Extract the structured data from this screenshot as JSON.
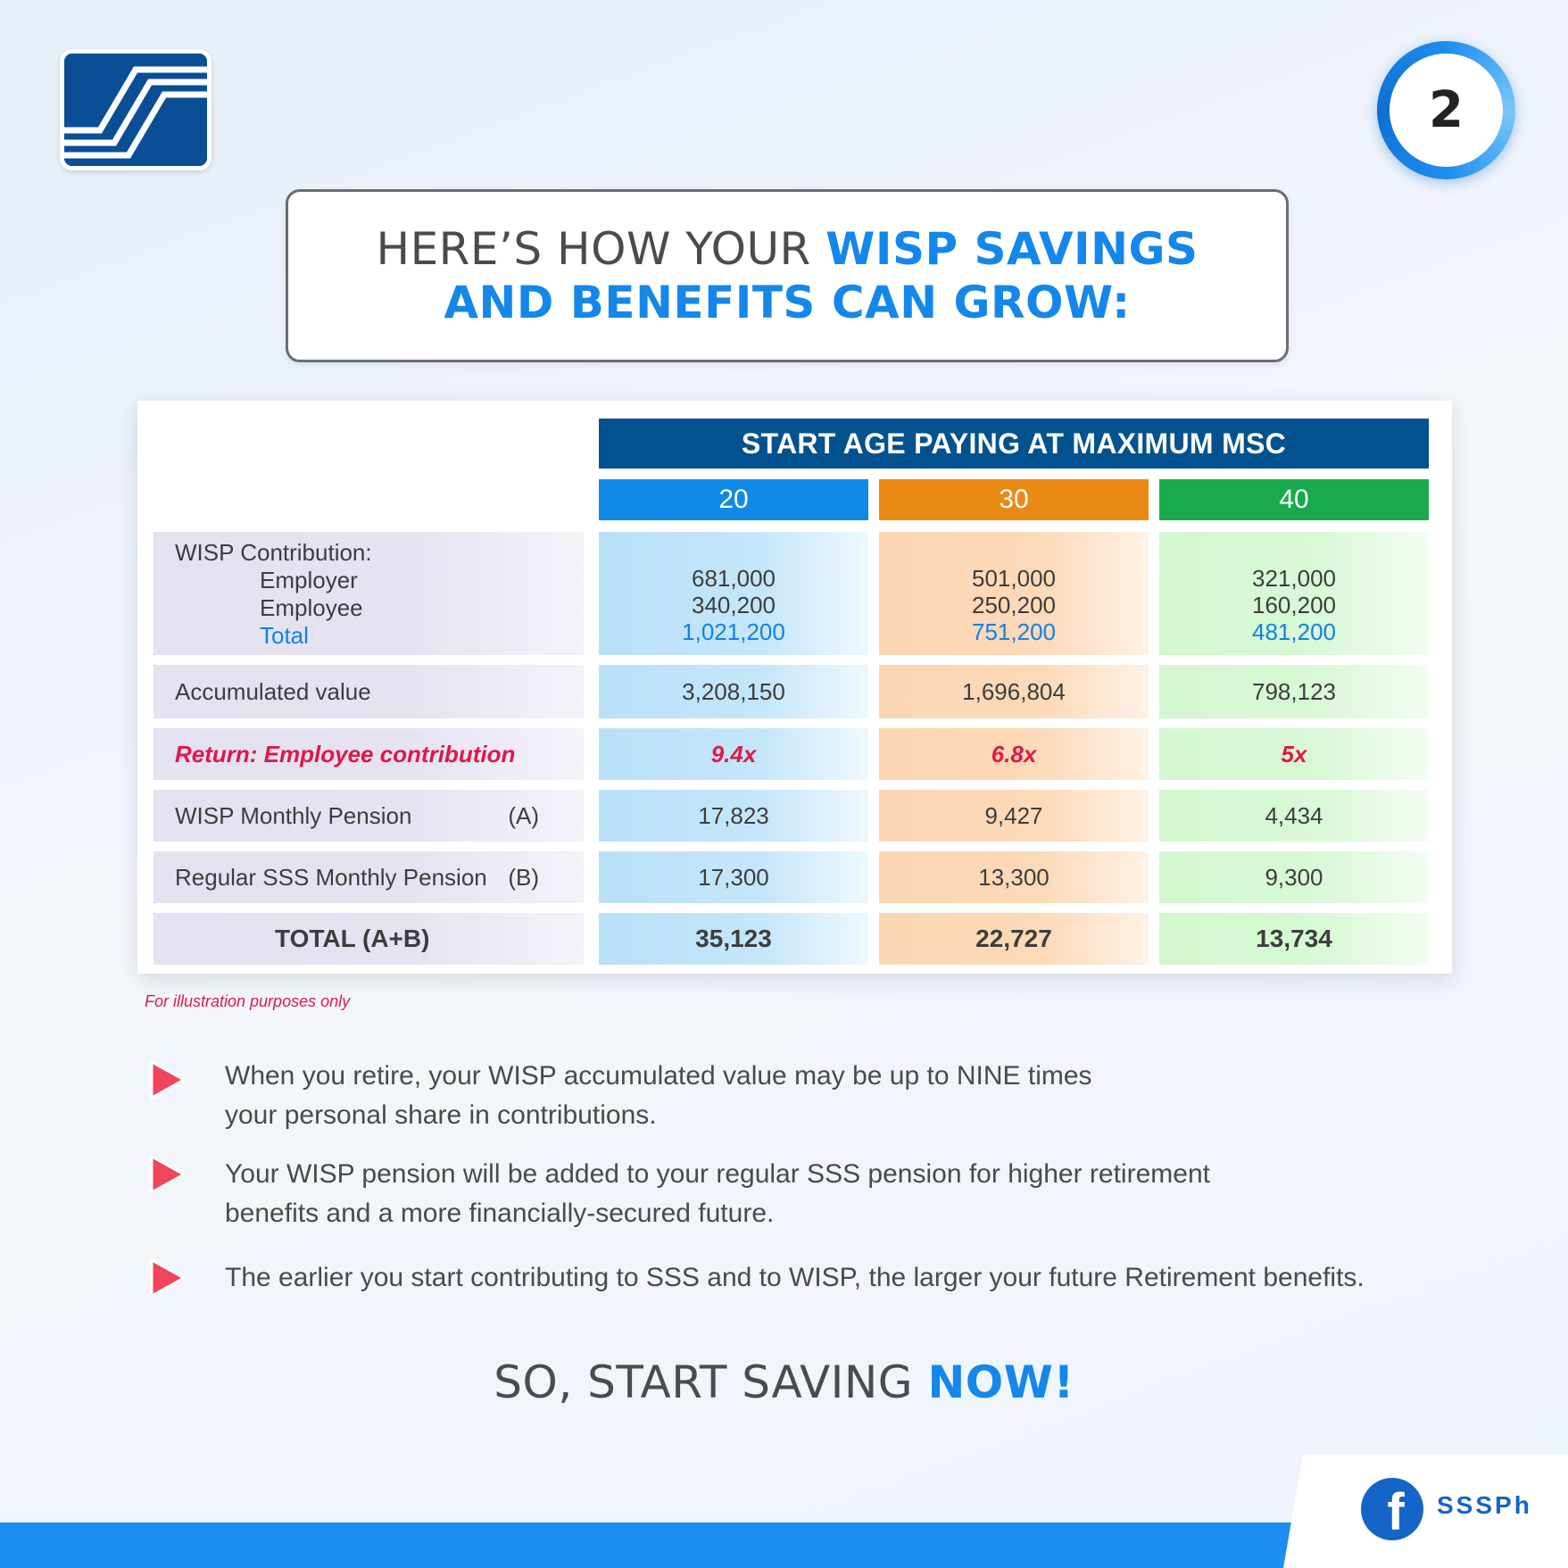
{
  "page_number": "2",
  "title": {
    "line1_gray": "HERE’S HOW YOUR ",
    "line1_blue": "WISP SAVINGS",
    "line2_blue": "AND BENEFITS CAN GROW:"
  },
  "table": {
    "header": "START AGE PAYING AT MAXIMUM MSC",
    "ages": [
      "20",
      "30",
      "40"
    ],
    "age_colors": [
      "#0f8ae6",
      "#ea8a14",
      "#1aaa4c"
    ],
    "rows": {
      "contribution": {
        "label": "WISP Contribution:",
        "employer_label": "Employer",
        "employee_label": "Employee",
        "total_label": "Total",
        "values": [
          {
            "employer": "681,000",
            "employee": "340,200",
            "total": "1,021,200"
          },
          {
            "employer": "501,000",
            "employee": "250,200",
            "total": "751,200"
          },
          {
            "employer": "321,000",
            "employee": "160,200",
            "total": "481,200"
          }
        ]
      },
      "accumulated": {
        "label": "Accumulated value",
        "values": [
          "3,208,150",
          "1,696,804",
          "798,123"
        ]
      },
      "return": {
        "label": "Return: Employee contribution",
        "values": [
          "9.4x",
          "6.8x",
          "5x"
        ]
      },
      "wisp_pension": {
        "label": "WISP Monthly Pension",
        "tag": "(A)",
        "values": [
          "17,823",
          "9,427",
          "4,434"
        ]
      },
      "regular_pension": {
        "label": "Regular SSS Monthly Pension",
        "tag": "(B)",
        "values": [
          "17,300",
          "13,300",
          "9,300"
        ]
      },
      "total": {
        "label": "TOTAL (A+B)",
        "values": [
          "35,123",
          "22,727",
          "13,734"
        ]
      }
    }
  },
  "disclaimer": "For illustration purposes only",
  "bullets": [
    {
      "line1": "When you retire, your WISP accumulated value may be up to NINE times",
      "line2": "your personal share in contributions."
    },
    {
      "line1": "Your WISP pension will be added to your regular SSS pension for higher retirement",
      "line2": "benefits and a more financially-secured future."
    },
    {
      "line1": "The earlier you start contributing to SSS and to WISP, the larger your future Retirement benefits.",
      "line2": ""
    }
  ],
  "cta": {
    "gray": "SO, START SAVING ",
    "blue": "NOW!"
  },
  "social": {
    "icon": "facebook-icon",
    "handle": "SSSPh"
  }
}
